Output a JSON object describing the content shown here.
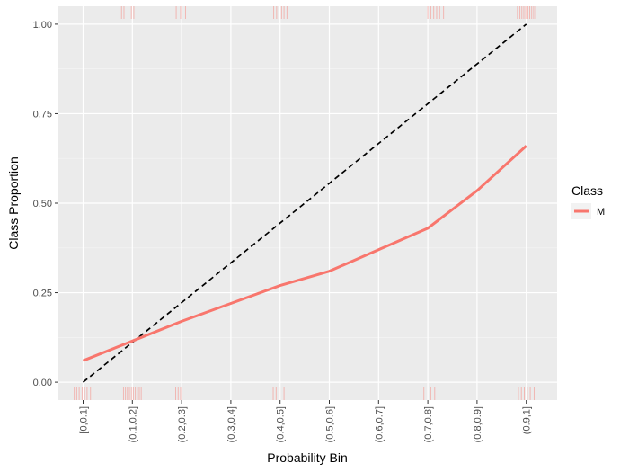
{
  "chart_data": {
    "type": "line",
    "xlabel": "Probability Bin",
    "ylabel": "Class Proportion",
    "categories": [
      "[0,0.1]",
      "(0.1,0.2]",
      "(0.2,0.3]",
      "(0.3,0.4]",
      "(0.4,0.5]",
      "(0.5,0.6]",
      "(0.6,0.7]",
      "(0.7,0.8]",
      "(0.8,0.9]",
      "(0.9,1]"
    ],
    "ylim": [
      -0.05,
      1.05
    ],
    "yticks": [
      0.0,
      0.25,
      0.5,
      0.75,
      1.0
    ],
    "ytick_labels": [
      "0.00",
      "0.25",
      "0.50",
      "0.75",
      "1.00"
    ],
    "grid": true,
    "legend": {
      "title": "Class",
      "placement": "right"
    },
    "series": [
      {
        "name": "M",
        "color": "#F8766D",
        "values": [
          0.06,
          0.115,
          0.17,
          0.22,
          0.27,
          0.31,
          0.37,
          0.43,
          0.535,
          0.66
        ]
      }
    ],
    "reference_line": {
      "style": "dashed",
      "color": "#000000",
      "x": [
        1,
        10
      ],
      "y": [
        0.0,
        1.0
      ]
    },
    "rug": {
      "color": "#F8766D",
      "top_positions": [
        1.78,
        1.83,
        1.98,
        2.03,
        2.89,
        2.98,
        3.08,
        4.87,
        4.93,
        5.03,
        5.08,
        5.14,
        8.0,
        8.06,
        8.12,
        8.18,
        8.24,
        8.32,
        9.82,
        9.87,
        9.91,
        9.95,
        9.99,
        10.03,
        10.07,
        10.11,
        10.15,
        10.19
      ],
      "bottom_positions": [
        0.82,
        0.87,
        0.92,
        0.98,
        1.03,
        1.08,
        1.15,
        1.82,
        1.86,
        1.9,
        1.94,
        1.98,
        2.02,
        2.06,
        2.1,
        2.14,
        2.18,
        2.88,
        2.93,
        2.98,
        4.86,
        4.92,
        4.98,
        5.08,
        7.92,
        8.06,
        8.14,
        9.84,
        9.9,
        9.96,
        10.02,
        10.08,
        10.16
      ]
    }
  }
}
